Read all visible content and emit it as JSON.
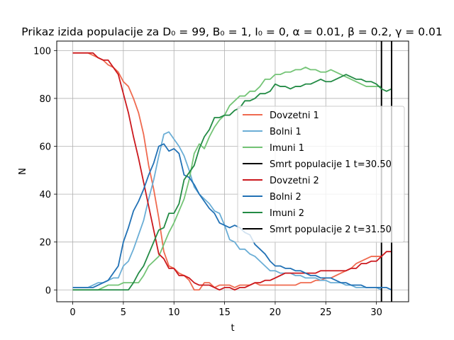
{
  "chart_data": {
    "type": "line",
    "title": "Prikaz izida populacije za D₀ = 99, B₀ = 1, I₀ = 0, α = 0.01, β = 0.2, γ = 0.01",
    "xlabel": "t",
    "ylabel": "N",
    "xlim": [
      -1.58,
      33.18
    ],
    "ylim": [
      -4.95,
      103.95
    ],
    "xticks": [
      0,
      5,
      10,
      15,
      20,
      25,
      30
    ],
    "yticks": [
      0,
      20,
      40,
      60,
      80,
      100
    ],
    "grid": true,
    "legend_position": "center-right",
    "series": [
      {
        "name": "Dovzetni 1",
        "color": "#ef6a4f",
        "x": [
          0,
          0.5,
          1,
          1.5,
          2,
          2.5,
          3,
          3.5,
          4,
          4.5,
          5,
          5.5,
          6,
          6.5,
          7,
          7.5,
          8,
          8.5,
          9,
          9.5,
          10,
          10.5,
          11,
          11.5,
          12,
          12.5,
          13,
          13.5,
          14,
          14.5,
          15,
          15.5,
          16,
          16.5,
          17,
          17.5,
          18,
          18.5,
          19,
          19.5,
          20,
          20.5,
          21,
          21.5,
          22,
          22.5,
          23,
          23.5,
          24,
          24.5,
          25,
          25.5,
          26,
          26.5,
          27,
          27.5,
          28,
          28.5,
          29,
          29.5,
          30,
          30.5
        ],
        "values": [
          99,
          99,
          99,
          99,
          98,
          97,
          96,
          94,
          93,
          91,
          87,
          85,
          80,
          74,
          65,
          52,
          42,
          30,
          16,
          10,
          9,
          7,
          6,
          4,
          0,
          0,
          3,
          3,
          1,
          2,
          2,
          2,
          1,
          2,
          2,
          2,
          3,
          2,
          2,
          2,
          2,
          2,
          2,
          2,
          2,
          3,
          3,
          3,
          4,
          4,
          5,
          5,
          6,
          7,
          8,
          9,
          11,
          12,
          13,
          14,
          14,
          14
        ]
      },
      {
        "name": "Bolni 1",
        "color": "#6baed6",
        "x": [
          0,
          0.5,
          1,
          1.5,
          2,
          2.5,
          3,
          3.5,
          4,
          4.5,
          5,
          5.5,
          6,
          6.5,
          7,
          7.5,
          8,
          8.5,
          9,
          9.5,
          10,
          10.5,
          11,
          11.5,
          12,
          12.5,
          13,
          13.5,
          14,
          14.5,
          15,
          15.5,
          16,
          16.5,
          17,
          17.5,
          18,
          18.5,
          19,
          19.5,
          20,
          20.5,
          21,
          21.5,
          22,
          22.5,
          23,
          23.5,
          24,
          24.5,
          25,
          25.5,
          26,
          26.5,
          27,
          27.5,
          28,
          28.5,
          29,
          29.5,
          30,
          30.5
        ],
        "values": [
          1,
          1,
          1,
          1,
          2,
          3,
          3,
          4,
          5,
          5,
          10,
          12,
          17,
          23,
          29,
          38,
          46,
          56,
          65,
          66,
          63,
          60,
          56,
          50,
          43,
          40,
          38,
          36,
          33,
          32,
          27,
          21,
          20,
          17,
          17,
          15,
          14,
          12,
          10,
          8,
          8,
          7,
          7,
          7,
          6,
          6,
          5,
          5,
          5,
          4,
          4,
          3,
          3,
          3,
          2,
          2,
          1,
          1,
          1,
          1,
          1,
          0
        ]
      },
      {
        "name": "Imuni 1",
        "color": "#74c476",
        "x": [
          0,
          0.5,
          1,
          1.5,
          2,
          2.5,
          3,
          3.5,
          4,
          4.5,
          5,
          5.5,
          6,
          6.5,
          7,
          7.5,
          8,
          8.5,
          9,
          9.5,
          10,
          10.5,
          11,
          11.5,
          12,
          12.5,
          13,
          13.5,
          14,
          14.5,
          15,
          15.5,
          16,
          16.5,
          17,
          17.5,
          18,
          18.5,
          19,
          19.5,
          20,
          20.5,
          21,
          21.5,
          22,
          22.5,
          23,
          23.5,
          24,
          24.5,
          25,
          25.5,
          26,
          26.5,
          27,
          27.5,
          28,
          28.5,
          29,
          29.5,
          30,
          30.5
        ],
        "values": [
          0,
          0,
          0,
          0,
          0,
          0,
          1,
          2,
          2,
          2,
          3,
          3,
          3,
          3,
          6,
          10,
          12,
          14,
          19,
          24,
          28,
          33,
          38,
          46,
          57,
          61,
          59,
          64,
          68,
          71,
          73,
          77,
          79,
          81,
          81,
          83,
          83,
          85,
          88,
          88,
          90,
          90,
          91,
          91,
          92,
          92,
          93,
          92,
          92,
          91,
          91,
          92,
          91,
          90,
          89,
          88,
          87,
          86,
          85,
          85,
          85,
          85
        ]
      },
      {
        "name": "Smrt populacije 1 t=30.50",
        "color": "#000000",
        "vline": 30.5
      },
      {
        "name": "Dovzetni 2",
        "color": "#cb181d",
        "x": [
          0,
          0.5,
          1,
          1.5,
          2,
          2.5,
          3,
          3.5,
          4,
          4.5,
          5,
          5.5,
          6,
          6.5,
          7,
          7.5,
          8,
          8.5,
          9,
          9.5,
          10,
          10.5,
          11,
          11.5,
          12,
          12.5,
          13,
          13.5,
          14,
          14.5,
          15,
          15.5,
          16,
          16.5,
          17,
          17.5,
          18,
          18.5,
          19,
          19.5,
          20,
          20.5,
          21,
          21.5,
          22,
          22.5,
          23,
          23.5,
          24,
          24.5,
          25,
          25.5,
          26,
          26.5,
          27,
          27.5,
          28,
          28.5,
          29,
          29.5,
          30,
          30.5,
          31,
          31.5
        ],
        "values": [
          99,
          99,
          99,
          99,
          99,
          97,
          96,
          96,
          93,
          90,
          82,
          74,
          64,
          55,
          45,
          35,
          25,
          15,
          13,
          9,
          9,
          6,
          6,
          5,
          3,
          2,
          2,
          2,
          1,
          0,
          1,
          1,
          0,
          1,
          1,
          2,
          3,
          3,
          4,
          4,
          5,
          6,
          7,
          7,
          7,
          7,
          7,
          7,
          7,
          8,
          8,
          8,
          8,
          8,
          8,
          9,
          9,
          11,
          11,
          12,
          12,
          14,
          16,
          16
        ]
      },
      {
        "name": "Bolni 2",
        "color": "#2171b5",
        "x": [
          0,
          0.5,
          1,
          1.5,
          2,
          2.5,
          3,
          3.5,
          4,
          4.5,
          5,
          5.5,
          6,
          6.5,
          7,
          7.5,
          8,
          8.5,
          9,
          9.5,
          10,
          10.5,
          11,
          11.5,
          12,
          12.5,
          13,
          13.5,
          14,
          14.5,
          15,
          15.5,
          16,
          16.5,
          17,
          17.5,
          18,
          18.5,
          19,
          19.5,
          20,
          20.5,
          21,
          21.5,
          22,
          22.5,
          23,
          23.5,
          24,
          24.5,
          25,
          25.5,
          26,
          26.5,
          27,
          27.5,
          28,
          28.5,
          29,
          29.5,
          30,
          30.5,
          31,
          31.5
        ],
        "values": [
          1,
          1,
          1,
          1,
          1,
          2,
          3,
          4,
          7,
          10,
          20,
          26,
          33,
          37,
          42,
          48,
          53,
          60,
          61,
          58,
          59,
          57,
          48,
          47,
          44,
          40,
          37,
          34,
          32,
          28,
          27,
          26,
          27,
          26,
          24,
          23,
          19,
          17,
          15,
          12,
          10,
          10,
          9,
          9,
          8,
          8,
          7,
          6,
          6,
          5,
          5,
          5,
          4,
          3,
          3,
          2,
          2,
          2,
          1,
          1,
          1,
          1,
          1,
          0
        ]
      },
      {
        "name": "Imuni 2",
        "color": "#238b45",
        "x": [
          0,
          0.5,
          1,
          1.5,
          2,
          2.5,
          3,
          3.5,
          4,
          4.5,
          5,
          5.5,
          6,
          6.5,
          7,
          7.5,
          8,
          8.5,
          9,
          9.5,
          10,
          10.5,
          11,
          11.5,
          12,
          12.5,
          13,
          13.5,
          14,
          14.5,
          15,
          15.5,
          16,
          16.5,
          17,
          17.5,
          18,
          18.5,
          19,
          19.5,
          20,
          20.5,
          21,
          21.5,
          22,
          22.5,
          23,
          23.5,
          24,
          24.5,
          25,
          25.5,
          26,
          26.5,
          27,
          27.5,
          28,
          28.5,
          29,
          29.5,
          30,
          30.5,
          31,
          31.5
        ],
        "values": [
          0,
          0,
          0,
          0,
          0,
          0,
          0,
          0,
          0,
          0,
          0,
          0,
          3,
          7,
          10,
          15,
          20,
          25,
          26,
          32,
          32,
          36,
          46,
          49,
          52,
          59,
          64,
          67,
          72,
          72,
          73,
          73,
          75,
          76,
          79,
          79,
          80,
          82,
          82,
          83,
          86,
          85,
          85,
          84,
          85,
          85,
          86,
          86,
          87,
          88,
          87,
          87,
          88,
          89,
          90,
          89,
          88,
          88,
          87,
          87,
          86,
          84,
          83,
          84
        ]
      },
      {
        "name": "Smrt populacije 2 t=31.50",
        "color": "#000000",
        "vline": 31.5
      }
    ]
  }
}
